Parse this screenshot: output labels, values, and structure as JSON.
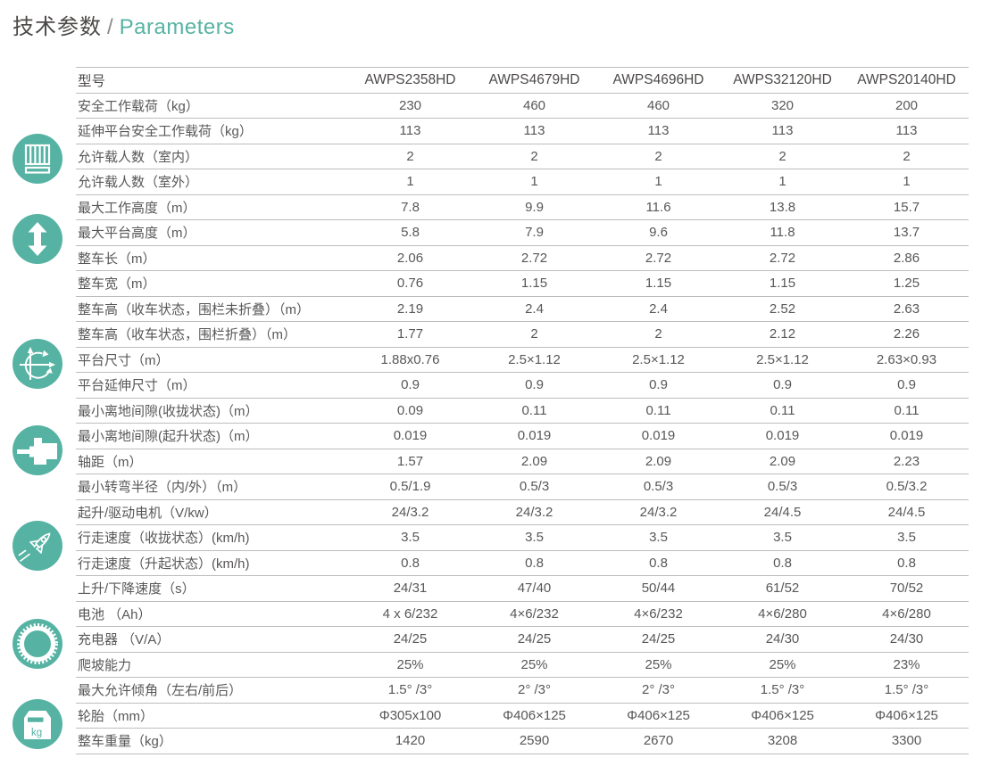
{
  "page": {
    "title_zh": "技术参数",
    "title_sep": "/",
    "title_en": "Parameters",
    "colors": {
      "accent": "#56b3a3",
      "line": "#bdbdbd",
      "text": "#595757"
    }
  },
  "table": {
    "header": {
      "label": "型号",
      "models": [
        "AWPS2358HD",
        "AWPS4679HD",
        "AWPS4696HD",
        "AWPS32120HD",
        "AWPS20140HD"
      ]
    },
    "rows": [
      {
        "label": "安全工作载荷（kg）",
        "values": [
          "230",
          "460",
          "460",
          "320",
          "200"
        ]
      },
      {
        "label": "延伸平台安全工作载荷（kg）",
        "values": [
          "113",
          "113",
          "113",
          "113",
          "113"
        ]
      },
      {
        "label": "允许载人数（室内）",
        "values": [
          "2",
          "2",
          "2",
          "2",
          "2"
        ]
      },
      {
        "label": "允许载人数（室外）",
        "values": [
          "1",
          "1",
          "1",
          "1",
          "1"
        ]
      },
      {
        "label": "最大工作高度（m）",
        "values": [
          "7.8",
          "9.9",
          "11.6",
          "13.8",
          "15.7"
        ]
      },
      {
        "label": "最大平台高度（m）",
        "values": [
          "5.8",
          "7.9",
          "9.6",
          "11.8",
          "13.7"
        ]
      },
      {
        "label": "整车长（m）",
        "values": [
          "2.06",
          "2.72",
          "2.72",
          "2.72",
          "2.86"
        ]
      },
      {
        "label": "整车宽（m）",
        "values": [
          "0.76",
          "1.15",
          "1.15",
          "1.15",
          "1.25"
        ]
      },
      {
        "label": "整车高（收车状态，围栏未折叠）（m）",
        "values": [
          "2.19",
          "2.4",
          "2.4",
          "2.52",
          "2.63"
        ]
      },
      {
        "label": "整车高（收车状态，围栏折叠）（m）",
        "values": [
          "1.77",
          "2",
          "2",
          "2.12",
          "2.26"
        ]
      },
      {
        "label": "平台尺寸（m）",
        "values": [
          "1.88x0.76",
          "2.5×1.12",
          "2.5×1.12",
          "2.5×1.12",
          "2.63×0.93"
        ]
      },
      {
        "label": "平台延伸尺寸（m）",
        "values": [
          "0.9",
          "0.9",
          "0.9",
          "0.9",
          "0.9"
        ]
      },
      {
        "label": "最小离地间隙(收拢状态)（m）",
        "values": [
          "0.09",
          "0.11",
          "0.11",
          "0.11",
          "0.11"
        ]
      },
      {
        "label": "最小离地间隙(起升状态)（m）",
        "values": [
          "0.019",
          "0.019",
          "0.019",
          "0.019",
          "0.019"
        ]
      },
      {
        "label": "轴距（m）",
        "values": [
          "1.57",
          "2.09",
          "2.09",
          "2.09",
          "2.23"
        ]
      },
      {
        "label": "最小转弯半径（内/外）（m）",
        "values": [
          "0.5/1.9",
          "0.5/3",
          "0.5/3",
          "0.5/3",
          "0.5/3.2"
        ]
      },
      {
        "label": "起升/驱动电机（V/kw）",
        "values": [
          "24/3.2",
          "24/3.2",
          "24/3.2",
          "24/4.5",
          "24/4.5"
        ]
      },
      {
        "label": "行走速度（收拢状态）(km/h)",
        "values": [
          "3.5",
          "3.5",
          "3.5",
          "3.5",
          "3.5"
        ]
      },
      {
        "label": "行走速度（升起状态）(km/h)",
        "values": [
          "0.8",
          "0.8",
          "0.8",
          "0.8",
          "0.8"
        ]
      },
      {
        "label": "上升/下降速度（s）",
        "values": [
          "24/31",
          "47/40",
          "50/44",
          "61/52",
          "70/52"
        ]
      },
      {
        "label": "电池 （Ah）",
        "values": [
          "4 x 6/232",
          "4×6/232",
          "4×6/232",
          "4×6/280",
          "4×6/280"
        ]
      },
      {
        "label": "充电器 （V/A）",
        "values": [
          "24/25",
          "24/25",
          "24/25",
          "24/30",
          "24/30"
        ]
      },
      {
        "label": "爬坡能力",
        "values": [
          "25%",
          "25%",
          "25%",
          "25%",
          "23%"
        ]
      },
      {
        "label": "最大允许倾角（左右/前后）",
        "values": [
          "1.5° /3°",
          "2° /3°",
          "2° /3°",
          "1.5° /3°",
          "1.5° /3°"
        ]
      },
      {
        "label": "轮胎（mm）",
        "values": [
          "Φ305x100",
          "Φ406×125",
          "Φ406×125",
          "Φ406×125",
          "Φ406×125"
        ]
      },
      {
        "label": "整车重量（kg）",
        "values": [
          "1420",
          "2590",
          "2670",
          "3208",
          "3300"
        ]
      }
    ]
  },
  "icons": [
    {
      "name": "platform-guardrail-icon"
    },
    {
      "name": "height-updown-arrow-icon"
    },
    {
      "name": "turning-radius-axes-icon"
    },
    {
      "name": "drive-motor-icon"
    },
    {
      "name": "speed-rocket-icon"
    },
    {
      "name": "charger-gear-icon"
    },
    {
      "name": "weight-kg-icon",
      "label": "kg"
    }
  ]
}
